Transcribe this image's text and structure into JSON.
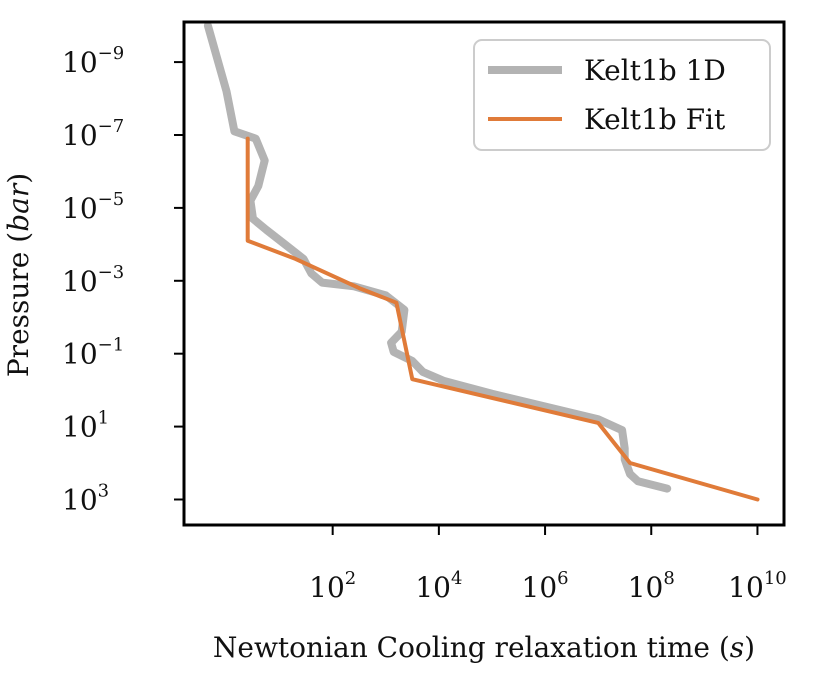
{
  "chart_data": {
    "type": "line",
    "title": "",
    "xlabel_main": "Newtonian Cooling relaxation time (",
    "xlabel_var": "s",
    "xlabel_close": ")",
    "ylabel_main": "Pressure (",
    "ylabel_var": "bar",
    "ylabel_close": ")",
    "x_scale": "log",
    "y_scale": "log",
    "y_inverted": true,
    "xlim_log10": [
      -0.8,
      10.5
    ],
    "ylim_log10": [
      -10.1,
      3.7
    ],
    "x_ticks": [
      {
        "base": "10",
        "exp": "2",
        "log10": 2
      },
      {
        "base": "10",
        "exp": "4",
        "log10": 4
      },
      {
        "base": "10",
        "exp": "6",
        "log10": 6
      },
      {
        "base": "10",
        "exp": "8",
        "log10": 8
      },
      {
        "base": "10",
        "exp": "10",
        "log10": 10
      }
    ],
    "y_ticks": [
      {
        "base": "10",
        "exp": "−9",
        "log10": -9
      },
      {
        "base": "10",
        "exp": "−7",
        "log10": -7
      },
      {
        "base": "10",
        "exp": "−5",
        "log10": -5
      },
      {
        "base": "10",
        "exp": "−3",
        "log10": -3
      },
      {
        "base": "10",
        "exp": "−1",
        "log10": -1
      },
      {
        "base": "10",
        "exp": "1",
        "log10": 1
      },
      {
        "base": "10",
        "exp": "3",
        "log10": 3
      }
    ],
    "legend_position": "top-right",
    "series": [
      {
        "name": "Kelt1b 1D",
        "color": "#b3b3b3",
        "points_log10": [
          [
            -0.35,
            -10.0
          ],
          [
            0.0,
            -8.2
          ],
          [
            0.15,
            -7.1
          ],
          [
            0.55,
            -6.9
          ],
          [
            0.72,
            -6.3
          ],
          [
            0.6,
            -5.6
          ],
          [
            0.45,
            -5.2
          ],
          [
            0.5,
            -4.7
          ],
          [
            0.75,
            -4.4
          ],
          [
            1.1,
            -4.0
          ],
          [
            1.45,
            -3.6
          ],
          [
            1.6,
            -3.2
          ],
          [
            1.8,
            -2.95
          ],
          [
            2.4,
            -2.85
          ],
          [
            3.0,
            -2.6
          ],
          [
            3.35,
            -2.2
          ],
          [
            3.3,
            -1.6
          ],
          [
            3.1,
            -1.3
          ],
          [
            3.15,
            -1.05
          ],
          [
            3.5,
            -0.8
          ],
          [
            3.7,
            -0.5
          ],
          [
            4.1,
            -0.25
          ],
          [
            5.0,
            0.1
          ],
          [
            6.0,
            0.45
          ],
          [
            7.0,
            0.8
          ],
          [
            7.45,
            1.1
          ],
          [
            7.5,
            1.6
          ],
          [
            7.5,
            1.9
          ],
          [
            7.6,
            2.3
          ],
          [
            7.75,
            2.5
          ],
          [
            8.3,
            2.7
          ]
        ]
      },
      {
        "name": "Kelt1b Fit",
        "color": "#e07b39",
        "points_log10": [
          [
            0.4,
            -6.9
          ],
          [
            0.4,
            -4.1
          ],
          [
            1.3,
            -3.6
          ],
          [
            2.5,
            -2.8
          ],
          [
            3.2,
            -2.4
          ],
          [
            3.5,
            -0.3
          ],
          [
            7.0,
            0.9
          ],
          [
            7.6,
            2.0
          ],
          [
            10.0,
            3.0
          ]
        ]
      }
    ]
  }
}
